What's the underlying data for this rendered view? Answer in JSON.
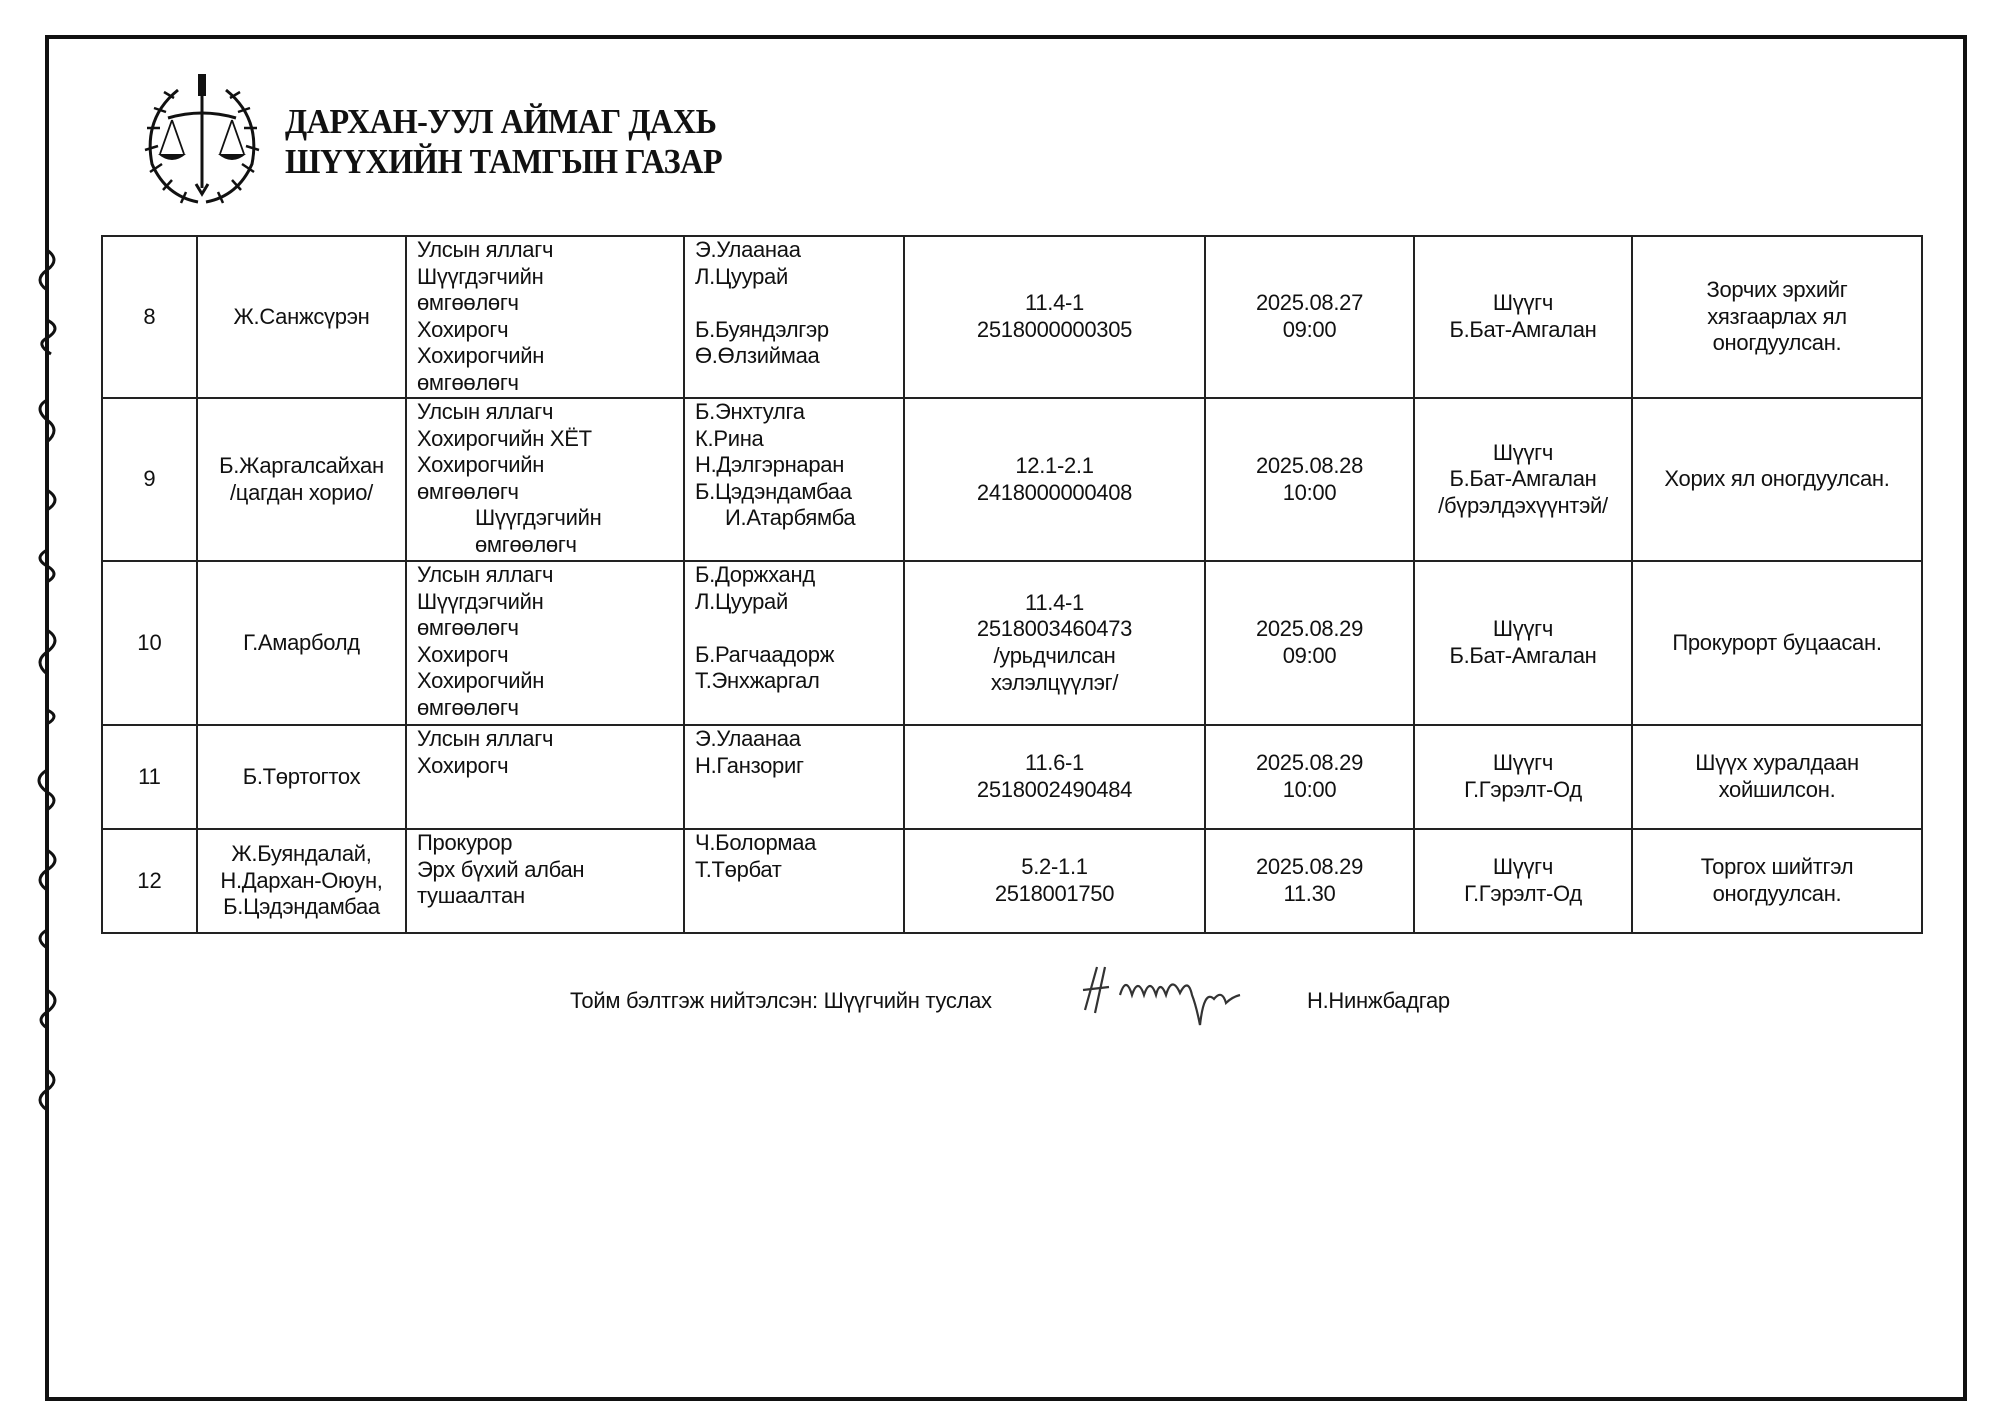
{
  "header": {
    "title_line1": "ДАРХАН-УУЛ АЙМАГ ДАХЬ",
    "title_line2": "ШҮҮХИЙН ТАМГЫН ГАЗАР",
    "logo_icon": "court-emblem-scales-icon"
  },
  "table": {
    "rows": [
      {
        "no": "8",
        "defendant": [
          "Ж.Санжсүрэн"
        ],
        "participants": [
          "Улсын яллагч",
          "Шүүгдэгчийн",
          "өмгөөлөгч",
          "Хохирогч",
          "Хохирогчийн",
          "өмгөөлөгч"
        ],
        "names": [
          "Э.Улаанаа",
          "Л.Цуурай",
          "",
          "Б.Буяндэлгэр",
          "Ө.Өлзиймаа"
        ],
        "case": [
          "11.4-1",
          "2518000000305"
        ],
        "datetime": [
          "2025.08.27",
          "09:00"
        ],
        "judge": [
          "Шүүгч",
          "Б.Бат-Амгалан"
        ],
        "result": [
          "Зорчих эрхийг",
          "хязгаарлах ял",
          "оногдуулсан."
        ]
      },
      {
        "no": "9",
        "defendant": [
          "Б.Жаргалсайхан",
          "/цагдан хорио/"
        ],
        "participants": [
          "Улсын яллагч",
          "Хохирогчийн ХЁТ",
          "Хохирогчийн",
          "өмгөөлөгч",
          "Шүүгдэгчийн",
          "өмгөөлөгч"
        ],
        "names": [
          "Б.Энхтулга",
          "К.Рина",
          "Н.Дэлгэрнаран",
          "Б.Цэдэндамбаа",
          "И.Атарбямба"
        ],
        "case": [
          "12.1-2.1",
          "2418000000408"
        ],
        "datetime": [
          "2025.08.28",
          "10:00"
        ],
        "judge": [
          "Шүүгч",
          "Б.Бат-Амгалан",
          "/бүрэлдэхүүнтэй/"
        ],
        "result": [
          "Хорих ял оногдуулсан."
        ]
      },
      {
        "no": "10",
        "defendant": [
          "Г.Амарболд"
        ],
        "participants": [
          "Улсын яллагч",
          "Шүүгдэгчийн",
          "өмгөөлөгч",
          "Хохирогч",
          "Хохирогчийн",
          "өмгөөлөгч"
        ],
        "names": [
          "Б.Доржханд",
          "Л.Цуурай",
          "",
          "Б.Рагчаадорж",
          "Т.Энхжаргал"
        ],
        "case": [
          "11.4-1",
          "2518003460473",
          "/урьдчилсан",
          "хэлэлцүүлэг/"
        ],
        "datetime": [
          "2025.08.29",
          "09:00"
        ],
        "judge": [
          "Шүүгч",
          "Б.Бат-Амгалан"
        ],
        "result": [
          "Прокурорт буцаасан."
        ]
      },
      {
        "no": "11",
        "defendant": [
          "Б.Төртогтох"
        ],
        "participants": [
          "Улсын яллагч",
          "Хохирогч"
        ],
        "names": [
          "Э.Улаанаа",
          "Н.Ганзориг"
        ],
        "case": [
          "11.6-1",
          "2518002490484"
        ],
        "datetime": [
          "2025.08.29",
          "10:00"
        ],
        "judge": [
          "Шүүгч",
          "Г.Гэрэлт-Од"
        ],
        "result": [
          "Шүүх хуралдаан",
          "хойшилсон."
        ]
      },
      {
        "no": "12",
        "defendant": [
          "Ж.Буяндалай,",
          "Н.Дархан-Оюун,",
          "Б.Цэдэндамбаа"
        ],
        "participants": [
          "Прокурор",
          "Эрх бүхий албан",
          "тушаалтан"
        ],
        "names": [
          "Ч.Болормаа",
          "Т.Төрбат"
        ],
        "case": [
          "5.2-1.1",
          "2518001750"
        ],
        "datetime": [
          "2025.08.29",
          "11.30"
        ],
        "judge": [
          "Шүүгч",
          "Г.Гэрэлт-Од"
        ],
        "result": [
          "Торгох шийтгэл",
          "оногдуулсан."
        ]
      }
    ]
  },
  "footer": {
    "prepared_by_label": "Тойм бэлтгэж нийтэлсэн: Шүүгчийн туслах",
    "signature": "Н. Нинжбадгар",
    "name": "Н.Нинжбадгар"
  }
}
